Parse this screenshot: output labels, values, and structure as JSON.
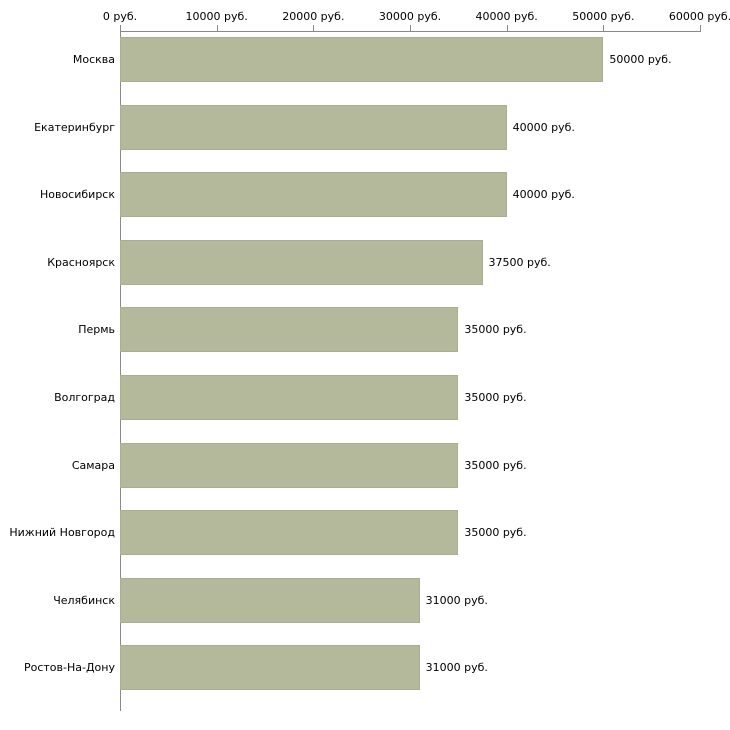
{
  "chart_data": {
    "type": "bar",
    "orientation": "horizontal",
    "title": "",
    "xlabel": "",
    "ylabel": "",
    "xlim": [
      0,
      60000
    ],
    "grid": false,
    "legend": false,
    "bar_color": "#b3b99a",
    "axis_color": "#8a8a8a",
    "x_ticks": [
      0,
      10000,
      20000,
      30000,
      40000,
      50000,
      60000
    ],
    "x_tick_labels": [
      "0 руб.",
      "10000 руб.",
      "20000 руб.",
      "30000 руб.",
      "40000 руб.",
      "50000 руб.",
      "60000 руб."
    ],
    "categories": [
      "Москва",
      "Екатеринбург",
      "Новосибирск",
      "Красноярск",
      "Пермь",
      "Волгоград",
      "Самара",
      "Нижний Новгород",
      "Челябинск",
      "Ростов-На-Дону"
    ],
    "values": [
      50000,
      40000,
      40000,
      37500,
      35000,
      35000,
      35000,
      35000,
      31000,
      31000
    ],
    "value_labels": [
      "50000 руб.",
      "40000 руб.",
      "40000 руб.",
      "37500 руб.",
      "35000 руб.",
      "35000 руб.",
      "35000 руб.",
      "35000 руб.",
      "31000 руб.",
      "31000 руб."
    ]
  }
}
